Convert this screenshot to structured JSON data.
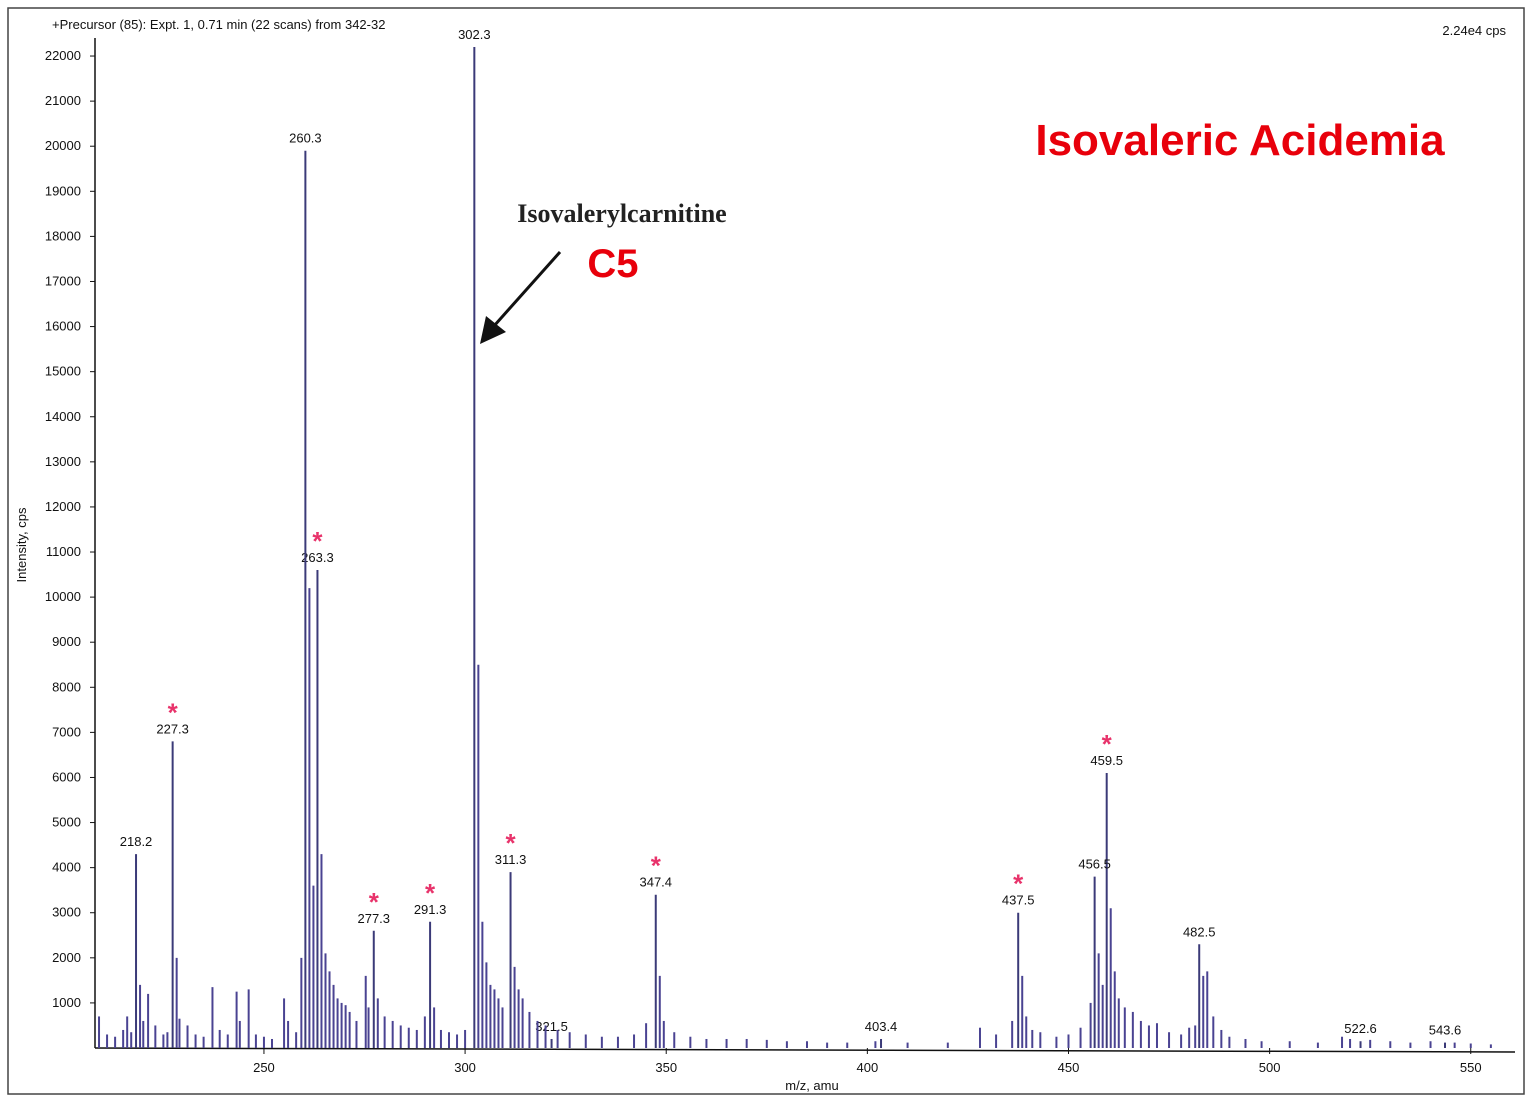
{
  "chart_data": {
    "type": "stem",
    "header": "+Precursor (85): Expt. 1, 0.71 min (22 scans) from 342-32",
    "scale_note": "2.24e4 cps",
    "title": "Isovaleric Acidemia",
    "annotation": "Isovalerylcarnitine",
    "annotation_label": "C5",
    "x_label": "m/z, amu",
    "y_label": "Intensity, cps",
    "xlim": [
      208,
      561
    ],
    "ylim": [
      0,
      22400
    ],
    "xticks": [
      250,
      300,
      350,
      400,
      450,
      500,
      550
    ],
    "yticks": [
      1000,
      2000,
      3000,
      4000,
      5000,
      6000,
      7000,
      8000,
      9000,
      10000,
      11000,
      12000,
      13000,
      14000,
      15000,
      16000,
      17000,
      18000,
      19000,
      20000,
      21000,
      22000
    ],
    "series": [
      {
        "color": "#3b3a78",
        "labeled": true,
        "marker": "*",
        "marker_color": "#e8336b",
        "x": [
          227.3,
          263.3,
          277.3,
          291.3,
          311.3,
          347.4,
          437.5,
          459.5
        ],
        "values": [
          6800,
          10600,
          2600,
          2800,
          3900,
          3400,
          3000,
          6100
        ]
      },
      {
        "color": "#3b3a78",
        "labeled": true,
        "x": [
          218.2,
          260.3,
          302.3,
          321.5,
          403.4,
          456.5,
          482.5,
          522.6,
          543.6
        ],
        "values": [
          4300,
          19900,
          22200,
          200,
          200,
          3800,
          2300,
          150,
          120
        ]
      },
      {
        "color": "#4a4392",
        "labeled": false,
        "x": [
          209,
          211,
          213,
          215,
          216,
          217,
          219.2,
          220,
          221.2,
          223,
          225,
          226,
          228.3,
          229,
          231,
          233,
          235,
          237.2,
          239,
          241,
          243.2,
          244,
          246.2,
          248,
          250,
          252,
          255,
          256,
          258,
          259.3,
          261.3,
          262.3,
          264.3,
          265.3,
          266.3,
          267.3,
          268.3,
          269.3,
          270.3,
          271.3,
          273,
          275.3,
          276,
          278.3,
          280,
          282,
          284,
          286,
          288,
          290,
          292.3,
          294,
          296,
          298,
          300,
          303.3,
          304.3,
          305.3,
          306.3,
          307.3,
          308.3,
          309.3,
          312.3,
          313.3,
          314.3,
          316,
          318,
          320,
          323,
          326,
          330,
          334,
          338,
          342,
          345,
          348.4,
          349.4,
          352,
          356,
          360,
          365,
          370,
          375,
          380,
          385,
          390,
          395,
          402,
          410,
          420,
          428,
          432,
          436,
          438.5,
          439.5,
          441,
          443,
          447,
          450,
          453,
          455.5,
          457.5,
          458.5,
          460.5,
          461.5,
          462.5,
          464,
          466,
          468,
          470,
          472,
          475,
          478,
          480,
          481.5,
          483.5,
          484.5,
          486,
          488,
          490,
          494,
          498,
          505,
          512,
          518,
          520,
          525,
          530,
          535,
          540,
          546,
          550,
          555
        ],
        "values": [
          700,
          300,
          250,
          400,
          700,
          350,
          1400,
          600,
          1200,
          500,
          300,
          350,
          2000,
          650,
          500,
          300,
          250,
          1350,
          400,
          300,
          1250,
          600,
          1300,
          300,
          250,
          200,
          1100,
          600,
          350,
          2000,
          10200,
          3600,
          4300,
          2100,
          1700,
          1400,
          1100,
          1000,
          950,
          800,
          600,
          1600,
          900,
          1100,
          700,
          600,
          500,
          450,
          400,
          700,
          900,
          400,
          350,
          300,
          400,
          8500,
          2800,
          1900,
          1400,
          1300,
          1100,
          900,
          1800,
          1300,
          1100,
          800,
          600,
          500,
          400,
          350,
          300,
          250,
          250,
          300,
          550,
          1600,
          600,
          350,
          250,
          200,
          200,
          200,
          180,
          150,
          150,
          120,
          120,
          150,
          120,
          120,
          450,
          300,
          600,
          1600,
          700,
          400,
          350,
          250,
          300,
          450,
          1000,
          2100,
          1400,
          3100,
          1700,
          1100,
          900,
          800,
          600,
          500,
          550,
          350,
          300,
          450,
          500,
          1600,
          1700,
          700,
          400,
          250,
          200,
          150,
          150,
          120,
          250,
          200,
          180,
          150,
          120,
          150,
          120,
          100,
          80
        ]
      }
    ]
  }
}
